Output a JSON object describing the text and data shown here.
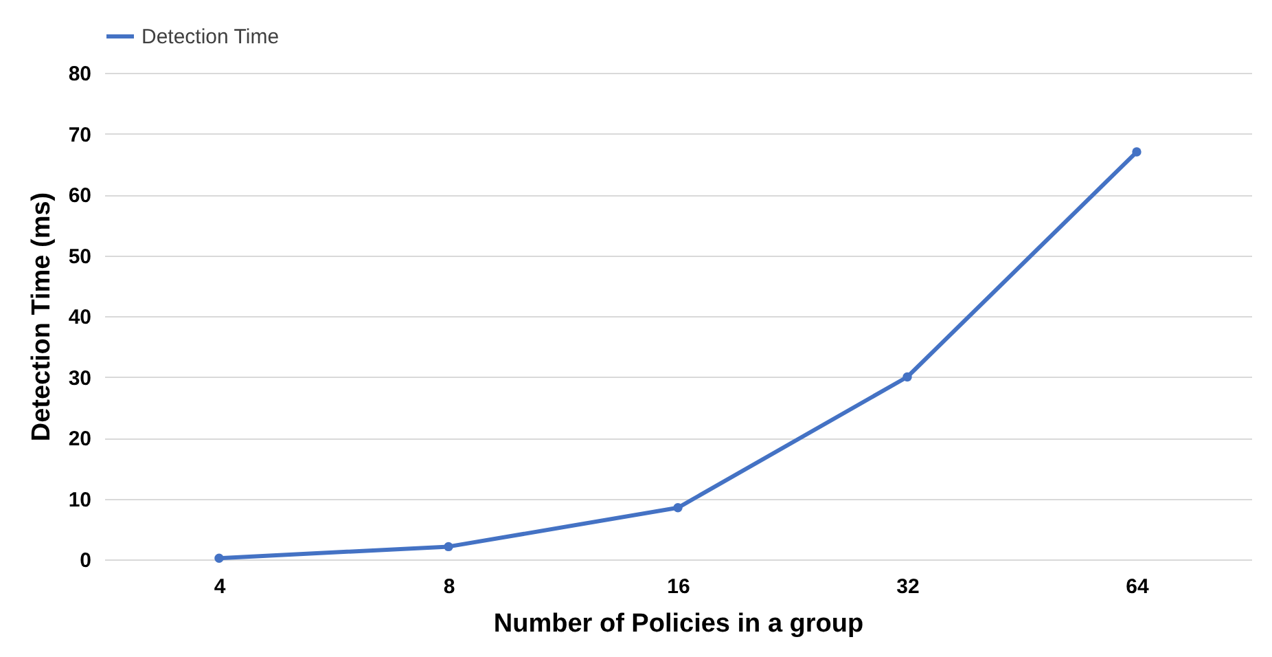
{
  "chart_data": {
    "type": "line",
    "xlabel": "Number of Policies in a group",
    "ylabel": "Detection Time (ms)",
    "categories": [
      "4",
      "8",
      "16",
      "32",
      "64"
    ],
    "series": [
      {
        "name": "Detection Time",
        "color": "#4472c4",
        "values": [
          0.2,
          2.1,
          8.5,
          30,
          67
        ]
      }
    ],
    "ylim": [
      0,
      80
    ],
    "yticks": [
      0,
      10,
      20,
      30,
      40,
      50,
      60,
      70,
      80
    ],
    "grid": "y",
    "legend": "top",
    "marker": "circle",
    "line_style": "solid"
  }
}
